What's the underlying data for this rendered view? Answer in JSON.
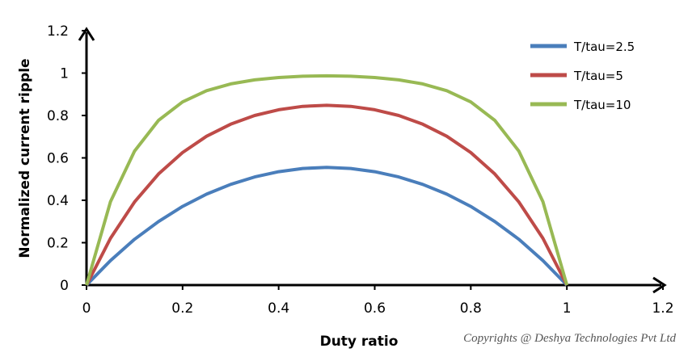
{
  "chart_data": {
    "type": "line",
    "title": "",
    "xlabel": "Duty ratio",
    "ylabel": "Normalized current ripple",
    "xlim": [
      0,
      1.2
    ],
    "ylim": [
      0,
      1.2
    ],
    "xticks": [
      "0",
      "0.2",
      "0.4",
      "0.6",
      "0.8",
      "1",
      "1.2"
    ],
    "yticks": [
      "0",
      "0.2",
      "0.4",
      "0.6",
      "0.8",
      "1",
      "1.2"
    ],
    "grid": false,
    "legend_position": "top-right",
    "x": [
      0,
      0.05,
      0.1,
      0.15,
      0.2,
      0.25,
      0.3,
      0.35,
      0.4,
      0.45,
      0.5,
      0.55,
      0.6,
      0.65,
      0.7,
      0.75,
      0.8,
      0.85,
      0.9,
      0.95,
      1
    ],
    "series": [
      {
        "name": "T/tau=2.5",
        "color": "#4A7EBB",
        "values": [
          0,
          0.116,
          0.216,
          0.3,
          0.371,
          0.429,
          0.475,
          0.51,
          0.535,
          0.55,
          0.555,
          0.55,
          0.535,
          0.51,
          0.475,
          0.429,
          0.371,
          0.3,
          0.216,
          0.116,
          0
        ]
      },
      {
        "name": "T/tau=5",
        "color": "#BE4B48",
        "values": [
          0,
          0.221,
          0.392,
          0.524,
          0.625,
          0.702,
          0.759,
          0.8,
          0.827,
          0.843,
          0.848,
          0.843,
          0.827,
          0.8,
          0.759,
          0.702,
          0.625,
          0.524,
          0.392,
          0.221,
          0
        ]
      },
      {
        "name": "T/tau=10",
        "color": "#98B954",
        "values": [
          0,
          0.394,
          0.632,
          0.777,
          0.864,
          0.917,
          0.949,
          0.968,
          0.979,
          0.985,
          0.987,
          0.985,
          0.979,
          0.968,
          0.949,
          0.917,
          0.864,
          0.777,
          0.632,
          0.394,
          0
        ]
      }
    ]
  },
  "copyright": "Copyrights @ Deshya Technologies Pvt Ltd"
}
